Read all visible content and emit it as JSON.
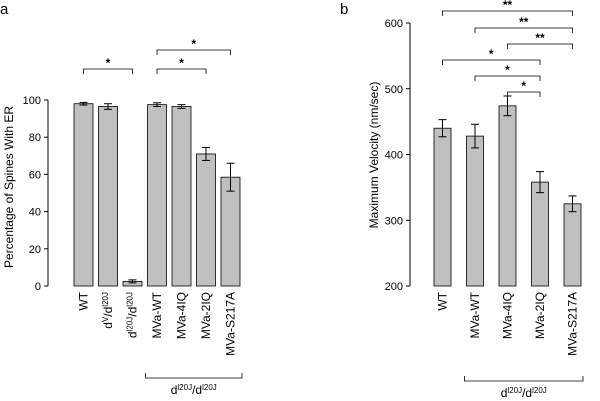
{
  "chart_data": [
    {
      "panel": "a",
      "type": "bar",
      "ylabel": "Percentage of Spines With ER",
      "ylim": [
        0,
        100
      ],
      "yticks": [
        0,
        20,
        40,
        60,
        80,
        100
      ],
      "categories": [
        {
          "parts": [
            {
              "t": "WT",
              "sup": false
            }
          ]
        },
        {
          "parts": [
            {
              "t": "d",
              "sup": false
            },
            {
              "t": "V",
              "sup": true
            },
            {
              "t": "/d",
              "sup": false
            },
            {
              "t": "l20J",
              "sup": true
            }
          ]
        },
        {
          "parts": [
            {
              "t": "d",
              "sup": false
            },
            {
              "t": "l20J",
              "sup": true
            },
            {
              "t": "/d",
              "sup": false
            },
            {
              "t": "l20J",
              "sup": true
            }
          ]
        },
        {
          "parts": [
            {
              "t": "MVa-WT",
              "sup": false
            }
          ]
        },
        {
          "parts": [
            {
              "t": "MVa-4IQ",
              "sup": false
            }
          ]
        },
        {
          "parts": [
            {
              "t": "MVa-2IQ",
              "sup": false
            }
          ]
        },
        {
          "parts": [
            {
              "t": "MVa-S217A",
              "sup": false
            }
          ]
        }
      ],
      "values": [
        98,
        96.5,
        2.5,
        97.5,
        96.5,
        71,
        58.5
      ],
      "errors": [
        0.7,
        1.5,
        0.8,
        1.0,
        1.0,
        3.5,
        7.5
      ],
      "significance": [
        {
          "from": 0,
          "to": 2,
          "label": "*"
        },
        {
          "from": 3,
          "to": 6,
          "label": "*"
        },
        {
          "from": 3,
          "to": 5,
          "label": "*"
        }
      ],
      "group_label": {
        "from": 3,
        "to": 6,
        "parts": [
          {
            "t": "d",
            "sup": false
          },
          {
            "t": "l20J",
            "sup": true
          },
          {
            "t": "/d",
            "sup": false
          },
          {
            "t": "l20J",
            "sup": true
          }
        ]
      },
      "bar_color": "#c0c0c0"
    },
    {
      "panel": "b",
      "type": "bar",
      "ylabel": "Maximum Velocity (nm/sec)",
      "ylim": [
        200,
        600
      ],
      "yticks": [
        200,
        300,
        400,
        500,
        600
      ],
      "categories": [
        {
          "parts": [
            {
              "t": "WT",
              "sup": false
            }
          ]
        },
        {
          "parts": [
            {
              "t": "MVa-WT",
              "sup": false
            }
          ]
        },
        {
          "parts": [
            {
              "t": "MVa-4IQ",
              "sup": false
            }
          ]
        },
        {
          "parts": [
            {
              "t": "MVa-2IQ",
              "sup": false
            }
          ]
        },
        {
          "parts": [
            {
              "t": "MVa-S217A",
              "sup": false
            }
          ]
        }
      ],
      "values": [
        440,
        428,
        474,
        358,
        325
      ],
      "errors": [
        13,
        18,
        15,
        16,
        12
      ],
      "significance": [
        {
          "from": 0,
          "to": 4,
          "label": "**"
        },
        {
          "from": 1,
          "to": 4,
          "label": "**"
        },
        {
          "from": 2,
          "to": 4,
          "label": "**"
        },
        {
          "from": 0,
          "to": 3,
          "label": "*"
        },
        {
          "from": 1,
          "to": 3,
          "label": "*"
        },
        {
          "from": 2,
          "to": 3,
          "label": "*"
        }
      ],
      "group_label": {
        "from": 1,
        "to": 4,
        "parts": [
          {
            "t": "d",
            "sup": false
          },
          {
            "t": "l20J",
            "sup": true
          },
          {
            "t": "/d",
            "sup": false
          },
          {
            "t": "l20J",
            "sup": true
          }
        ]
      },
      "bar_color": "#c0c0c0"
    }
  ]
}
